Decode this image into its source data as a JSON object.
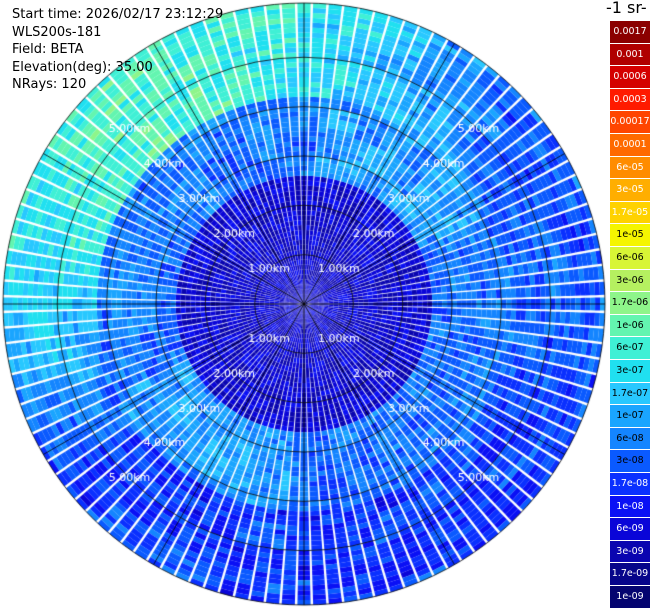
{
  "header": {
    "start_time": "Start time: 2026/02/17 23:12:29",
    "instrument": "WLS200s-181",
    "field": "Field: BETA",
    "elevation": "Elevation(deg): 35.00",
    "nrays": "NRays: 120"
  },
  "colorbar": {
    "title_fragment": "-1 sr-",
    "labels": [
      "0.0017",
      "0.001",
      "0.0006",
      "0.0003",
      "0.00017",
      "0.0001",
      "6e-05",
      "3e-05",
      "1.7e-05",
      "1e-05",
      "6e-06",
      "3e-06",
      "1.7e-06",
      "1e-06",
      "6e-07",
      "3e-07",
      "1.7e-07",
      "1e-07",
      "6e-08",
      "3e-08",
      "1.7e-08",
      "1e-08",
      "6e-09",
      "3e-09",
      "1.7e-09",
      "1e-09"
    ],
    "colors": [
      "#8b0000",
      "#b00000",
      "#d40000",
      "#ff1a00",
      "#ff4500",
      "#ff6a00",
      "#ff8c00",
      "#ffae00",
      "#ffd200",
      "#f5f500",
      "#d8f535",
      "#b5f060",
      "#8ef58a",
      "#63f5b0",
      "#3ff0d5",
      "#20e0f0",
      "#28c8ff",
      "#1aa5ff",
      "#1485ff",
      "#0a5aff",
      "#0a30ff",
      "#0a10f5",
      "#0a05d8",
      "#0a05b0",
      "#06058a",
      "#040470"
    ],
    "label_text_colors": [
      "#ffffff",
      "#ffffff",
      "#ffffff",
      "#ffffff",
      "#ffffff",
      "#ffffff",
      "#ffffff",
      "#ffffff",
      "#ffffff",
      "#000000",
      "#000000",
      "#000000",
      "#000000",
      "#000000",
      "#000000",
      "#000000",
      "#000000",
      "#000000",
      "#000000",
      "#000000",
      "#ffffff",
      "#ffffff",
      "#ffffff",
      "#ffffff",
      "#ffffff",
      "#ffffff"
    ]
  },
  "chart_data": {
    "type": "heatmap",
    "projection": "polar PPI scan",
    "field": "BETA",
    "elevation_deg": 35.0,
    "n_rays": 120,
    "azimuth_deg": [
      0,
      3,
      6,
      9,
      12,
      15,
      18,
      21,
      24,
      27,
      30,
      33,
      36,
      39,
      42,
      45,
      48,
      51,
      54,
      57,
      60,
      63,
      66,
      69,
      72,
      75,
      78,
      81,
      84,
      87,
      90,
      93,
      96,
      99,
      102,
      105,
      108,
      111,
      114,
      117,
      120,
      123,
      126,
      129,
      132,
      135,
      138,
      141,
      144,
      147,
      150,
      153,
      156,
      159,
      162,
      165,
      168,
      171,
      174,
      177,
      180,
      183,
      186,
      189,
      192,
      195,
      198,
      201,
      204,
      207,
      210,
      213,
      216,
      219,
      222,
      225,
      228,
      231,
      234,
      237,
      240,
      243,
      246,
      249,
      252,
      255,
      258,
      261,
      264,
      267,
      270,
      273,
      276,
      279,
      282,
      285,
      288,
      291,
      294,
      297,
      300,
      303,
      306,
      309,
      312,
      315,
      318,
      321,
      324,
      327,
      330,
      333,
      336,
      339,
      342,
      345,
      348,
      351,
      354,
      357
    ],
    "range_rings_km": [
      1,
      2,
      3,
      4,
      5
    ],
    "range_ring_labels": [
      "1.00km",
      "2.00km",
      "3.00km",
      "4.00km",
      "5.00km"
    ],
    "max_range_km": 6.1,
    "gate_spacing_km": 0.1,
    "spokes_deg": [
      0,
      30,
      60,
      90,
      120,
      150,
      180,
      210,
      240,
      270,
      300,
      330
    ],
    "colorscale_labels": [
      "0.0017",
      "0.001",
      "0.0006",
      "0.0003",
      "0.00017",
      "0.0001",
      "6e-05",
      "3e-05",
      "1.7e-05",
      "1e-05",
      "6e-06",
      "3e-06",
      "1.7e-06",
      "1e-06",
      "6e-07",
      "3e-07",
      "1.7e-07",
      "1e-07",
      "6e-08",
      "3e-08",
      "1.7e-08",
      "1e-08",
      "6e-09",
      "3e-09",
      "1.7e-09",
      "1e-09"
    ],
    "value_ranges_by_region": [
      {
        "range_km": [
          0,
          2.6
        ],
        "beta": "3e-09 to 1.7e-08"
      },
      {
        "range_km": [
          2.6,
          4.2
        ],
        "beta": "6e-08 to 3e-07"
      },
      {
        "range_km": [
          4.2,
          6.1
        ],
        "beta": "1.7e-08 to 3e-06"
      }
    ]
  }
}
